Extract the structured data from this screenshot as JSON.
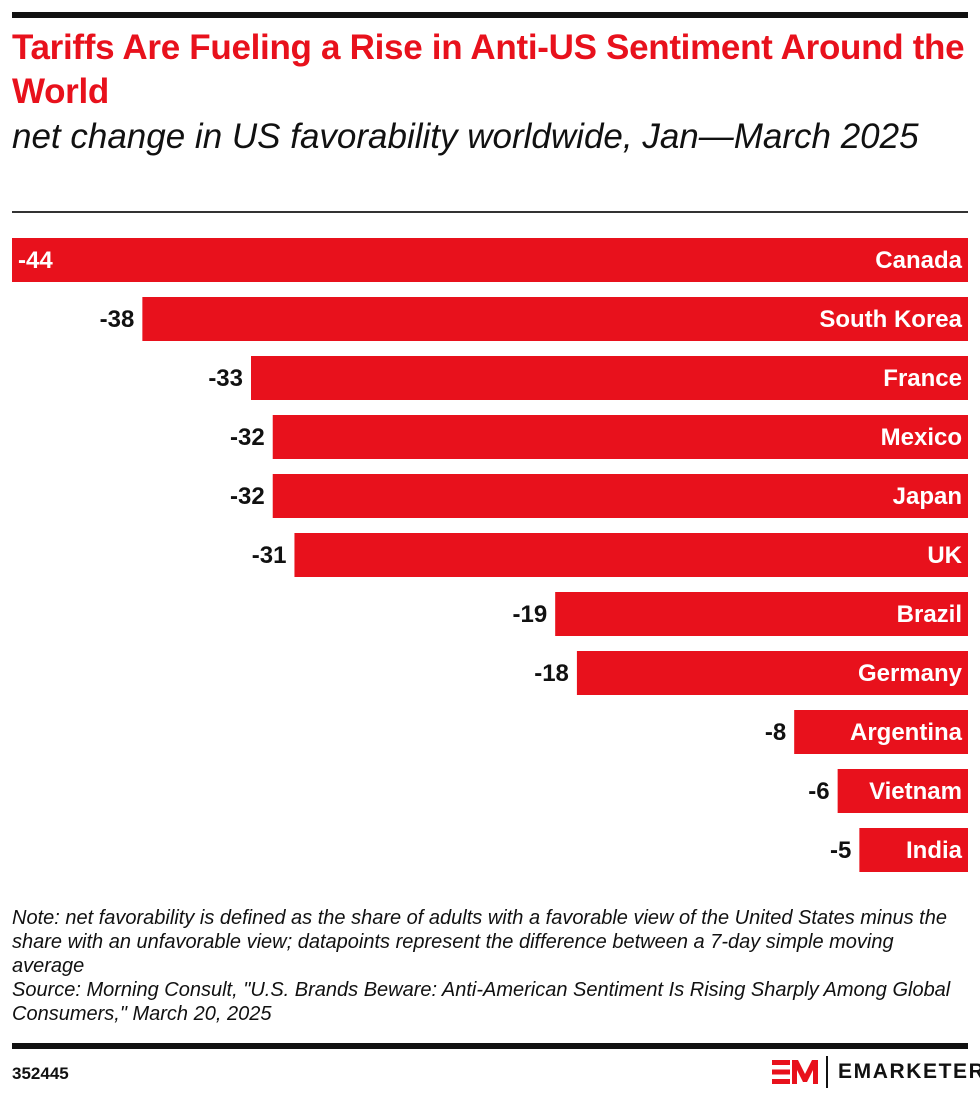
{
  "header": {
    "title": "Tariffs Are Fueling a Rise in Anti-US Sentiment Around the World",
    "subtitle": "net change in US favorability worldwide, Jan—March 2025"
  },
  "chart_data": {
    "type": "bar",
    "orientation": "horizontal",
    "title": "Tariffs Are Fueling a Rise in Anti-US Sentiment Around the World",
    "subtitle": "net change in US favorability worldwide, Jan—March 2025",
    "categories": [
      "Canada",
      "South Korea",
      "France",
      "Mexico",
      "Japan",
      "UK",
      "Brazil",
      "Germany",
      "Argentina",
      "Vietnam",
      "India"
    ],
    "values": [
      -44,
      -38,
      -33,
      -32,
      -32,
      -31,
      -19,
      -18,
      -8,
      -6,
      -5
    ],
    "xlim": [
      -44,
      0
    ],
    "grid": false,
    "bar_color": "#e8111c",
    "data_labels": true
  },
  "footer": {
    "note": "Note: net favorability is defined as the share of adults with a favorable view of the United States minus the share with an unfavorable view; datapoints represent the difference between a 7-day simple moving average",
    "source": "Source: Morning Consult, \"U.S. Brands Beware: Anti-American Sentiment Is Rising Sharply Among Global Consumers,\" March 20, 2025",
    "chart_id": "352445",
    "brand": "EMARKETER"
  }
}
